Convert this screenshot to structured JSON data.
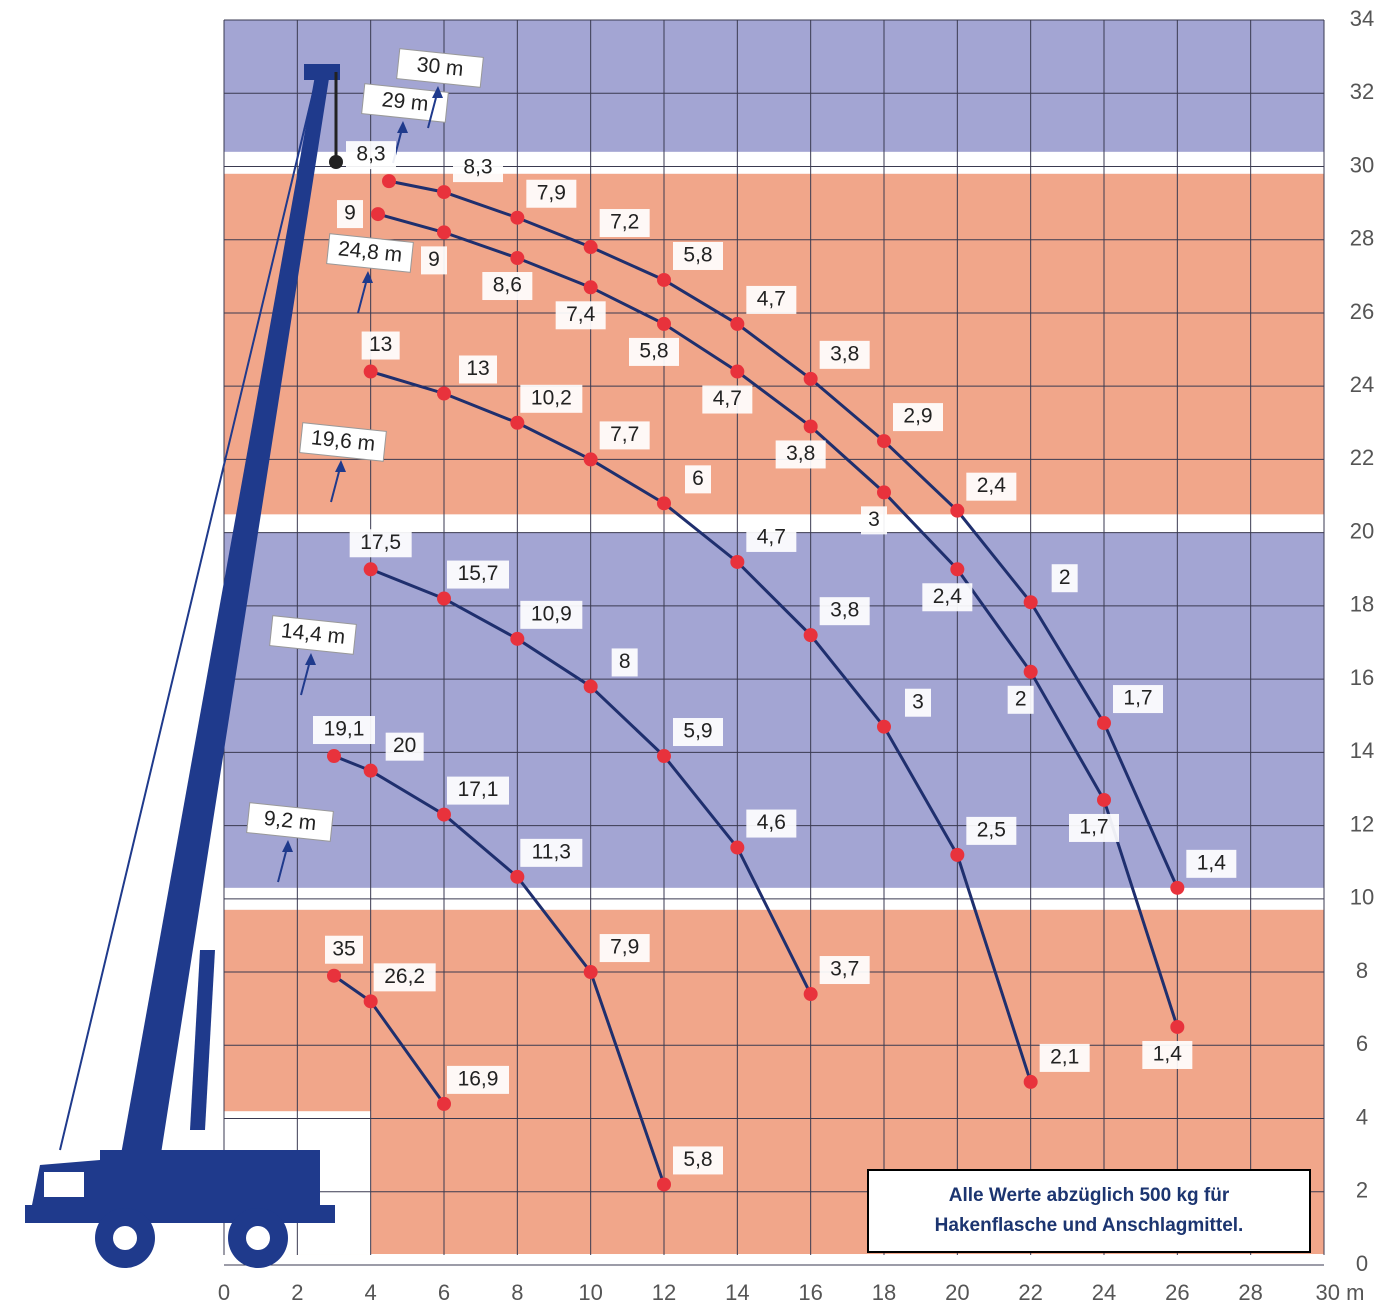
{
  "chart_data": {
    "type": "scatter-line",
    "xlim": [
      0,
      30
    ],
    "ylim": [
      0,
      34
    ],
    "xticks": [
      0,
      2,
      4,
      6,
      8,
      10,
      12,
      14,
      16,
      18,
      20,
      22,
      24,
      26,
      28,
      {
        "value": 30,
        "label": "30 m"
      }
    ],
    "yticks": [
      0,
      2,
      4,
      6,
      8,
      10,
      12,
      14,
      16,
      18,
      20,
      22,
      24,
      26,
      28,
      30,
      32,
      34
    ],
    "grid": true,
    "note": [
      "Alle Werte abzüglich 500 kg für",
      "Hakenflasche und Anschlagmittel."
    ],
    "series": [
      {
        "name": "9,2 m",
        "color": "#1f2f6e",
        "x": [
          3,
          4,
          6
        ],
        "y": [
          7.9,
          7.2,
          4.4
        ],
        "values": [
          35,
          26.2,
          16.9
        ],
        "value_labels": [
          "35",
          "26,2",
          "16,9"
        ]
      },
      {
        "name": "14,4 m",
        "color": "#1f2f6e",
        "x": [
          3,
          4,
          6,
          8,
          10,
          12
        ],
        "y": [
          13.9,
          13.5,
          12.3,
          10.6,
          8.0,
          2.2
        ],
        "values": [
          19.1,
          20,
          17.1,
          11.3,
          7.9,
          5.8
        ],
        "value_labels": [
          "19,1",
          "20",
          "17,1",
          "11,3",
          "7,9",
          "5,8"
        ]
      },
      {
        "name": "19,6 m",
        "color": "#1f2f6e",
        "x": [
          4,
          6,
          8,
          10,
          12,
          14,
          16
        ],
        "y": [
          19.0,
          18.2,
          17.1,
          15.8,
          13.9,
          11.4,
          7.4
        ],
        "values": [
          17.5,
          15.7,
          10.9,
          8,
          5.9,
          4.6,
          3.7
        ],
        "value_labels": [
          "17,5",
          "15,7",
          "10,9",
          "8",
          "5,9",
          "4,6",
          "3,7"
        ]
      },
      {
        "name": "24,8 m",
        "color": "#1f2f6e",
        "x": [
          4,
          6,
          8,
          10,
          12,
          14,
          16,
          18,
          20,
          22
        ],
        "y": [
          24.4,
          23.8,
          23.0,
          22.0,
          20.8,
          19.2,
          17.2,
          14.7,
          11.2,
          5.0
        ],
        "values": [
          13,
          13,
          10.2,
          7.7,
          6,
          4.7,
          3.8,
          3,
          2.5,
          2.1
        ],
        "value_labels": [
          "13",
          "13",
          "10,2",
          "7,7",
          "6",
          "4,7",
          "3,8",
          "3",
          "2,5",
          "2,1"
        ]
      },
      {
        "name": "29 m",
        "color": "#1f2f6e",
        "x": [
          4.2,
          6,
          8,
          10,
          12,
          14,
          16,
          18,
          20,
          22,
          24,
          26
        ],
        "y": [
          28.7,
          28.2,
          27.5,
          26.7,
          25.7,
          24.4,
          22.9,
          21.1,
          19.0,
          16.2,
          12.7,
          6.5
        ],
        "values": [
          9,
          9,
          8.6,
          7.4,
          5.8,
          4.7,
          3.8,
          3,
          2.4,
          2,
          1.7,
          1.4
        ],
        "value_labels": [
          "9",
          "9",
          "8,6",
          "7,4",
          "5,8",
          "4,7",
          "3,8",
          "3",
          "2,4",
          "2",
          "1,7",
          "1,4"
        ]
      },
      {
        "name": "30 m",
        "color": "#1f2f6e",
        "x": [
          4.5,
          6,
          8,
          10,
          12,
          14,
          16,
          18,
          20,
          22,
          24,
          26
        ],
        "y": [
          29.6,
          29.3,
          28.6,
          27.8,
          26.9,
          25.7,
          24.2,
          22.5,
          20.6,
          18.1,
          14.8,
          10.3
        ],
        "values": [
          8.3,
          8.3,
          7.9,
          7.2,
          5.8,
          4.7,
          3.8,
          2.9,
          2.4,
          2,
          1.7,
          1.4
        ],
        "value_labels": [
          "8,3",
          "8,3",
          "7,9",
          "7,2",
          "5,8",
          "4,7",
          "3,8",
          "2,9",
          "2,4",
          "2",
          "1,7",
          "1,4"
        ]
      }
    ]
  }
}
